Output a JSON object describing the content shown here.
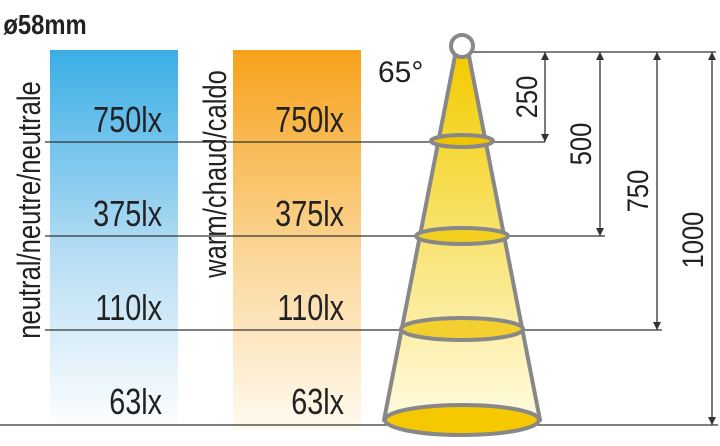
{
  "title": "ø58mm",
  "columns": [
    {
      "label": "neutral/neutre/neutrale",
      "levels": [
        "750lx",
        "375lx",
        "110lx",
        "63lx"
      ]
    },
    {
      "label": "warm/chaud/caldo",
      "levels": [
        "750lx",
        "375lx",
        "110lx",
        "63lx"
      ]
    }
  ],
  "beam_angle": "65°",
  "distances": [
    "250",
    "500",
    "750",
    "1000"
  ]
}
